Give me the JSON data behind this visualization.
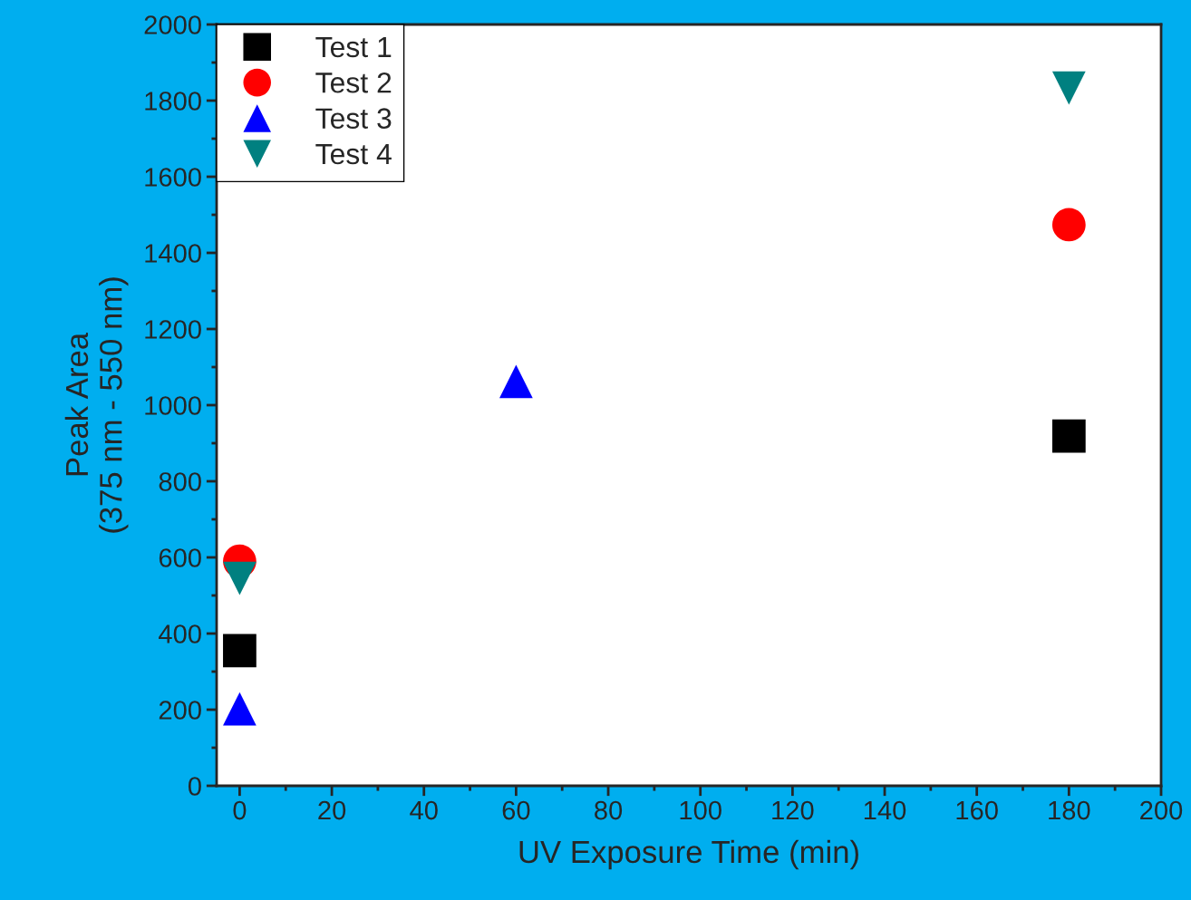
{
  "chart_data": {
    "type": "scatter",
    "xlabel": "UV Exposure Time (min)",
    "ylabel": "Peak Area\n(375 nm - 550 nm)",
    "xlim": [
      -5,
      200
    ],
    "xticks": [
      0,
      20,
      40,
      60,
      80,
      100,
      120,
      140,
      160,
      180,
      200
    ],
    "ylim": [
      0,
      2000
    ],
    "yticks": [
      0,
      200,
      400,
      600,
      800,
      1000,
      1200,
      1400,
      1600,
      1800,
      2000
    ],
    "grid": false,
    "legend": "top left",
    "series": [
      {
        "name": "Test 1",
        "color": "#000000",
        "marker": "square",
        "x": [
          0,
          180
        ],
        "values": [
          355,
          919
        ]
      },
      {
        "name": "Test 2",
        "color": "#ff0000",
        "marker": "circle",
        "x": [
          0,
          180
        ],
        "values": [
          590,
          1474
        ]
      },
      {
        "name": "Test 3",
        "color": "#0000ff",
        "marker": "triangle",
        "x": [
          0,
          60
        ],
        "values": [
          202,
          1062
        ]
      },
      {
        "name": "Test 4",
        "color": "#008080",
        "marker": "triangle_down",
        "x": [
          0,
          180
        ],
        "values": [
          545,
          1833
        ]
      }
    ]
  }
}
